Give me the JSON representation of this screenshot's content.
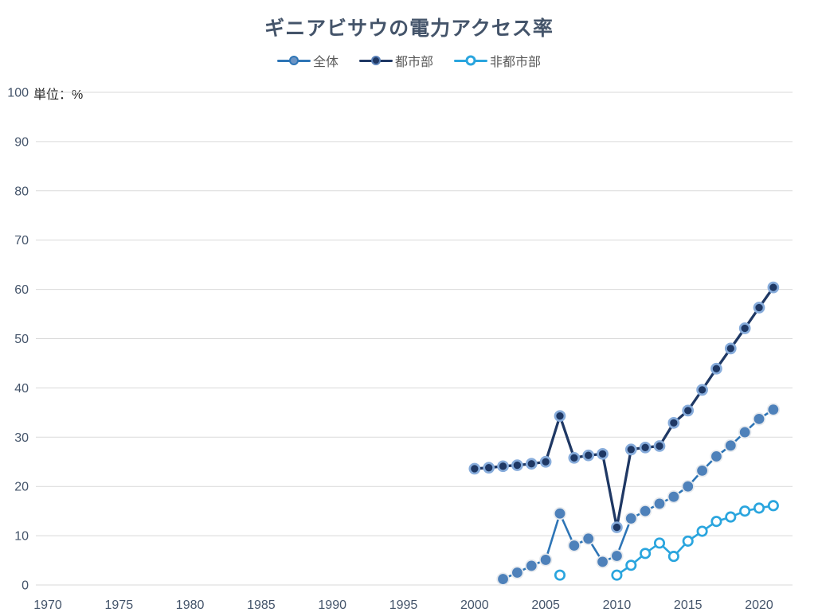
{
  "chart_data": {
    "type": "line",
    "title": "ギニアビサウの電力アクセス率",
    "unit_label": "単位：%",
    "xlabel": "",
    "ylabel": "",
    "xlim": [
      1969.16,
      2022.35
    ],
    "ylim": [
      0,
      100
    ],
    "x_ticks": [
      "1970",
      "1975",
      "1980",
      "1985",
      "1990",
      "1995",
      "2000",
      "2005",
      "2010",
      "2015",
      "2020"
    ],
    "y_ticks": [
      "0",
      "10",
      "20",
      "30",
      "40",
      "50",
      "60",
      "70",
      "80",
      "90",
      "100"
    ],
    "grid": "horizontal",
    "gridline_color": "#D9D9D9",
    "axis_label_color": "#44546A",
    "legend_position": "top",
    "legend_text_color": "#595959",
    "title_color": "#44546A",
    "series": [
      {
        "name": "全体",
        "line_color": "#2E75B6",
        "line_width": 2.6,
        "marker": "filled",
        "marker_fill": "#4E81BA",
        "marker_stroke": "#E7EAEE",
        "marker_radius": 7.3,
        "marker_stroke_width": 1.8,
        "points": [
          [
            2002,
            1.2
          ],
          [
            2003,
            2.5
          ],
          [
            2004,
            3.9
          ],
          [
            2005,
            5.1
          ],
          [
            2006,
            14.5
          ],
          [
            2007,
            8.0
          ],
          [
            2008,
            9.4
          ],
          [
            2009,
            4.7
          ],
          [
            2010,
            5.9
          ],
          [
            2011,
            13.5
          ],
          [
            2012,
            15.0
          ],
          [
            2013,
            16.5
          ],
          [
            2014,
            17.9
          ],
          [
            2015,
            20.0
          ],
          [
            2016,
            23.2
          ],
          [
            2017,
            26.1
          ],
          [
            2018,
            28.3
          ],
          [
            2019,
            31.0
          ],
          [
            2020,
            33.7
          ],
          [
            2021,
            35.6
          ]
        ]
      },
      {
        "name": "都市部",
        "line_color": "#1F3864",
        "line_width": 3.3,
        "marker": "filled",
        "marker_fill": "#1F3864",
        "marker_stroke": "#87ACDB",
        "marker_radius": 6.0,
        "marker_stroke_width": 2.7,
        "points": [
          [
            2000,
            23.6
          ],
          [
            2001,
            23.8
          ],
          [
            2002,
            24.1
          ],
          [
            2003,
            24.3
          ],
          [
            2004,
            24.6
          ],
          [
            2005,
            25.0
          ],
          [
            2006,
            34.3
          ],
          [
            2007,
            25.8
          ],
          [
            2008,
            26.3
          ],
          [
            2009,
            26.6
          ],
          [
            2010,
            11.7
          ],
          [
            2011,
            27.5
          ],
          [
            2012,
            27.9
          ],
          [
            2013,
            28.2
          ],
          [
            2014,
            32.9
          ],
          [
            2015,
            35.4
          ],
          [
            2016,
            39.6
          ],
          [
            2017,
            43.9
          ],
          [
            2018,
            48.0
          ],
          [
            2019,
            52.1
          ],
          [
            2020,
            56.3
          ],
          [
            2021,
            60.4
          ]
        ]
      },
      {
        "name": "非都市部",
        "line_color": "#2AA5DE",
        "line_width": 2.6,
        "marker": "open",
        "marker_fill": "#FFFFFF",
        "marker_stroke": "#2AA5DE",
        "marker_radius": 5.7,
        "marker_stroke_width": 2.7,
        "points": [
          [
            2006,
            2.0
          ],
          [
            2010,
            2.0
          ],
          [
            2011,
            4.0
          ],
          [
            2012,
            6.4
          ],
          [
            2013,
            8.5
          ],
          [
            2014,
            5.8
          ],
          [
            2015,
            8.9
          ],
          [
            2016,
            10.9
          ],
          [
            2017,
            12.9
          ],
          [
            2018,
            13.8
          ],
          [
            2019,
            15.0
          ],
          [
            2020,
            15.6
          ],
          [
            2021,
            16.1
          ]
        ]
      }
    ]
  }
}
